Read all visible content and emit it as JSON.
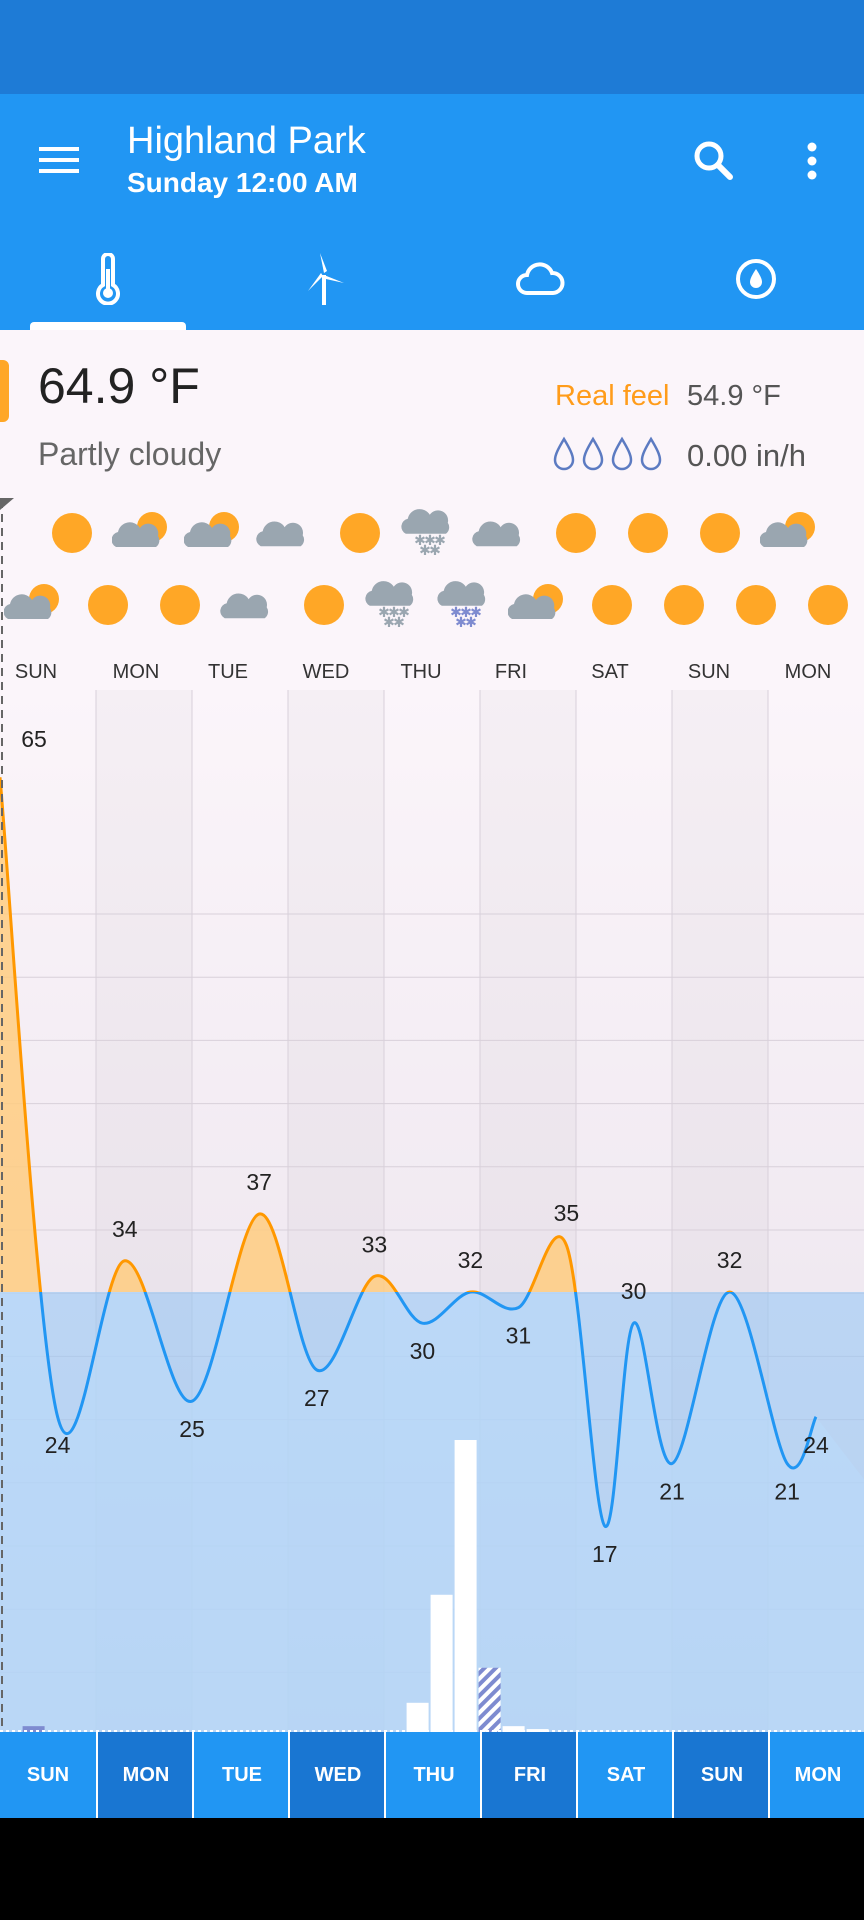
{
  "header": {
    "location": "Highland Park",
    "datetime": "Sunday 12:00 AM"
  },
  "tabs": [
    {
      "name": "temperature",
      "icon": "thermometer-icon",
      "selected": true
    },
    {
      "name": "wind",
      "icon": "wind-turbine-icon",
      "selected": false
    },
    {
      "name": "clouds",
      "icon": "cloud-icon",
      "selected": false
    },
    {
      "name": "precipitation",
      "icon": "droplet-icon",
      "selected": false
    }
  ],
  "current": {
    "temperature": "64.9 °F",
    "condition": "Partly cloudy",
    "real_feel_label": "Real feel",
    "real_feel": "54.9 °F",
    "precipitation": "0.00 in/h"
  },
  "days_top": [
    "SUN",
    "MON",
    "TUE",
    "WED",
    "THU",
    "FRI",
    "SAT",
    "SUN",
    "MON"
  ],
  "days_bottom": [
    "SUN",
    "MON",
    "TUE",
    "WED",
    "THU",
    "FRI",
    "SAT",
    "SUN",
    "MON"
  ],
  "icons_row1": [
    "sun",
    "partly-cloudy",
    "partly-cloudy",
    "cloud",
    "sun",
    "snow",
    "cloud",
    "sun",
    "sun",
    "sun",
    "partly-cloudy"
  ],
  "icons_row2": [
    "partly-cloudy",
    "sun",
    "sun",
    "cloud",
    "sun",
    "snow",
    "sleet",
    "partly-cloudy",
    "sun",
    "sun",
    "sun",
    "sun"
  ],
  "colors": {
    "primary": "#2196F3",
    "status": "#1E7BD6",
    "temp_line": "#FF9800",
    "temp_fill": "#FFCC80",
    "cold_line": "#2196F3",
    "sun": "#FFA726",
    "cloud": "#9AA6B0"
  },
  "chart_data": {
    "type": "line",
    "series": [
      {
        "values_by_time": [
          [
            0,
            65
          ],
          [
            0.6,
            24
          ],
          [
            1.3,
            34
          ],
          [
            2.0,
            25
          ],
          [
            2.7,
            37
          ],
          [
            3.3,
            27
          ],
          [
            3.9,
            33
          ],
          [
            4.4,
            30
          ],
          [
            4.9,
            32
          ],
          [
            5.4,
            31
          ],
          [
            5.9,
            35
          ],
          [
            6.3,
            17
          ],
          [
            6.6,
            30
          ],
          [
            7.0,
            21
          ],
          [
            7.6,
            32
          ],
          [
            8.2,
            21
          ],
          [
            8.5,
            24
          ]
        ]
      }
    ],
    "labels": [
      {
        "t": 0,
        "v": "65"
      },
      {
        "t": 0.6,
        "v": "24"
      },
      {
        "t": 1.3,
        "v": "34"
      },
      {
        "t": 2.0,
        "v": "25"
      },
      {
        "t": 2.7,
        "v": "37"
      },
      {
        "t": 3.3,
        "v": "27"
      },
      {
        "t": 3.9,
        "v": "33"
      },
      {
        "t": 4.4,
        "v": "30"
      },
      {
        "t": 4.9,
        "v": "32"
      },
      {
        "t": 5.4,
        "v": "31"
      },
      {
        "t": 5.9,
        "v": "35"
      },
      {
        "t": 6.3,
        "v": "17"
      },
      {
        "t": 6.6,
        "v": "30"
      },
      {
        "t": 7.0,
        "v": "21"
      },
      {
        "t": 7.6,
        "v": "32"
      },
      {
        "t": 8.2,
        "v": "21"
      },
      {
        "t": 8.5,
        "v": "24"
      }
    ],
    "freezing_line": 32,
    "precip_bars": [
      {
        "t": 0.35,
        "h": 0.02,
        "type": "rain"
      },
      {
        "t": 4.35,
        "h": 0.1,
        "type": "snow"
      },
      {
        "t": 4.6,
        "h": 0.47,
        "type": "snow"
      },
      {
        "t": 4.85,
        "h": 1.0,
        "type": "snow"
      },
      {
        "t": 5.1,
        "h": 0.22,
        "type": "sleet"
      },
      {
        "t": 5.35,
        "h": 0.02,
        "type": "snow"
      },
      {
        "t": 5.6,
        "h": 0.01,
        "type": "snow"
      }
    ]
  }
}
